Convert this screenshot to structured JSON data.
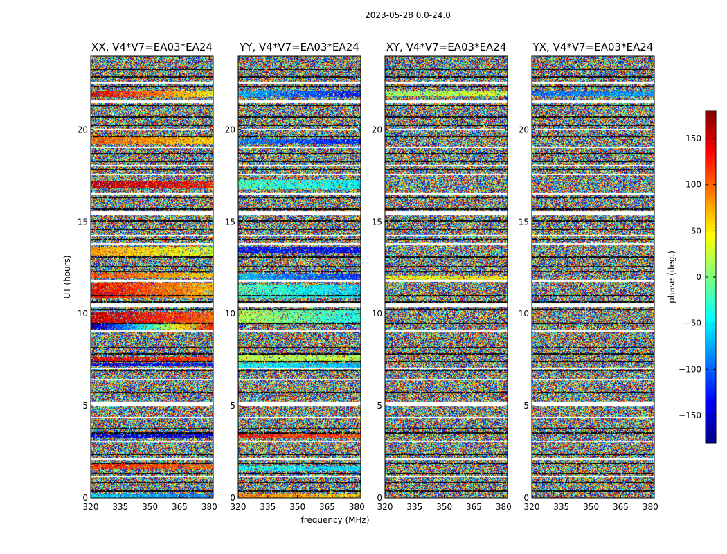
{
  "chart_data": {
    "type": "heatmap",
    "title": "2023-05-28 0.0-24.0",
    "xlabel": "frequency (MHz)",
    "ylabel": "UT (hours)",
    "xlim": [
      320,
      382
    ],
    "ylim": [
      0,
      24
    ],
    "x_ticks": [
      "320",
      "335",
      "350",
      "365",
      "380"
    ],
    "y_ticks": [
      "0",
      "5",
      "10",
      "15",
      "20"
    ],
    "x_tick_values": [
      320,
      335,
      350,
      365,
      380
    ],
    "y_tick_values": [
      0,
      5,
      10,
      15,
      20
    ],
    "colorbar": {
      "label": "phase (deg.)",
      "range": [
        -180,
        180
      ],
      "ticks": [
        "150",
        "100",
        "50",
        "0",
        "−50",
        "−100",
        "−150"
      ],
      "tick_values": [
        150,
        100,
        50,
        0,
        -50,
        -100,
        -150
      ],
      "colormap": "jet",
      "colors": [
        "#00007f",
        "#0000ff",
        "#007fff",
        "#00ffff",
        "#7fff7f",
        "#ffff00",
        "#ff7f00",
        "#ff0000",
        "#7f0000"
      ]
    },
    "panels": [
      {
        "title": "XX, V4*V7=EA03*EA24",
        "coherent_bands": [
          {
            "t0": 21.8,
            "t1": 22.15,
            "phase_start": 150,
            "phase_end": 45
          },
          {
            "t0": 19.25,
            "t1": 19.6,
            "phase_start": 100,
            "phase_end": 60
          },
          {
            "t0": 16.85,
            "t1": 17.2,
            "phase_start": 160,
            "phase_end": 130
          },
          {
            "t0": 13.2,
            "t1": 13.65,
            "phase_start": 80,
            "phase_end": 30
          },
          {
            "t0": 12.0,
            "t1": 12.25,
            "phase_start": 110,
            "phase_end": 60
          },
          {
            "t0": 10.9,
            "t1": 11.7,
            "phase_start": 140,
            "phase_end": 70
          },
          {
            "t0": 9.55,
            "t1": 10.1,
            "phase_start": 160,
            "phase_end": 100
          },
          {
            "t0": 9.15,
            "t1": 9.45,
            "phase_start": -170,
            "phase_end": 130
          },
          {
            "t0": 7.45,
            "t1": 7.7,
            "phase_start": 150,
            "phase_end": 110
          },
          {
            "t0": 7.15,
            "t1": 7.35,
            "phase_start": -150,
            "phase_end": -130
          },
          {
            "t0": 3.3,
            "t1": 3.5,
            "phase_start": -150,
            "phase_end": -150
          },
          {
            "t0": 1.6,
            "t1": 1.85,
            "phase_start": 120,
            "phase_end": 100
          },
          {
            "t0": 0.0,
            "t1": 0.25,
            "phase_start": -60,
            "phase_end": -90
          }
        ]
      },
      {
        "title": "YY, V4*V7=EA03*EA24",
        "coherent_bands": [
          {
            "t0": 21.8,
            "t1": 22.15,
            "phase_start": -70,
            "phase_end": -130
          },
          {
            "t0": 19.25,
            "t1": 19.55,
            "phase_start": -90,
            "phase_end": -130
          },
          {
            "t0": 16.8,
            "t1": 17.3,
            "phase_start": -20,
            "phase_end": -50
          },
          {
            "t0": 13.3,
            "t1": 13.65,
            "phase_start": -130,
            "phase_end": -140
          },
          {
            "t0": 11.85,
            "t1": 12.2,
            "phase_start": -70,
            "phase_end": -120
          },
          {
            "t0": 10.9,
            "t1": 11.6,
            "phase_start": -20,
            "phase_end": -60
          },
          {
            "t0": 9.55,
            "t1": 10.2,
            "phase_start": 20,
            "phase_end": -40
          },
          {
            "t0": 7.45,
            "t1": 7.75,
            "phase_start": 20,
            "phase_end": 20
          },
          {
            "t0": 7.1,
            "t1": 7.35,
            "phase_start": -40,
            "phase_end": -70
          },
          {
            "t0": 3.3,
            "t1": 3.5,
            "phase_start": 130,
            "phase_end": 110
          },
          {
            "t0": 1.5,
            "t1": 1.75,
            "phase_start": -40,
            "phase_end": -60
          },
          {
            "t0": 0.0,
            "t1": 0.25,
            "phase_start": 90,
            "phase_end": 60
          }
        ]
      },
      {
        "title": "XY, V4*V7=EA03*EA24",
        "coherent_bands": [
          {
            "t0": 21.85,
            "t1": 22.1,
            "phase_start": 10,
            "phase_end": 30
          },
          {
            "t0": 11.85,
            "t1": 12.1,
            "phase_start": 40,
            "phase_end": 60
          }
        ]
      },
      {
        "title": "YX, V4*V7=EA03*EA24",
        "coherent_bands": [
          {
            "t0": 21.85,
            "t1": 22.1,
            "phase_start": -100,
            "phase_end": -80
          }
        ]
      }
    ],
    "flagged_gaps": [
      {
        "t0": 22.5,
        "t1": 22.62
      },
      {
        "t0": 21.45,
        "t1": 21.62
      },
      {
        "t0": 20.0,
        "t1": 20.06
      },
      {
        "t0": 19.0,
        "t1": 19.08
      },
      {
        "t0": 18.05,
        "t1": 18.12
      },
      {
        "t0": 17.55,
        "t1": 17.62
      },
      {
        "t0": 16.5,
        "t1": 16.6
      },
      {
        "t0": 15.35,
        "t1": 15.58
      },
      {
        "t0": 14.25,
        "t1": 14.32
      },
      {
        "t0": 13.75,
        "t1": 13.85
      },
      {
        "t0": 11.75,
        "t1": 11.85
      },
      {
        "t0": 10.35,
        "t1": 10.6
      },
      {
        "t0": 9.05,
        "t1": 9.12
      },
      {
        "t0": 7.0,
        "t1": 7.08
      },
      {
        "t0": 6.4,
        "t1": 6.45
      },
      {
        "t0": 5.0,
        "t1": 5.25
      },
      {
        "t0": 4.35,
        "t1": 4.42
      },
      {
        "t0": 3.05,
        "t1": 3.12
      },
      {
        "t0": 2.1,
        "t1": 2.18
      },
      {
        "t0": 1.15,
        "t1": 1.22
      }
    ],
    "dark_rows": [
      23.7,
      23.3,
      22.9,
      22.35,
      21.35,
      20.7,
      20.25,
      19.65,
      18.7,
      18.3,
      17.85,
      16.35,
      15.7,
      15.05,
      14.6,
      14.05,
      13.1,
      12.6,
      12.3,
      11.0,
      10.65,
      10.25,
      9.5,
      8.65,
      8.2,
      7.85,
      7.42,
      7.05,
      6.95,
      5.75,
      3.8,
      3.55,
      2.4,
      1.9,
      1.35,
      0.85,
      0.4
    ]
  }
}
